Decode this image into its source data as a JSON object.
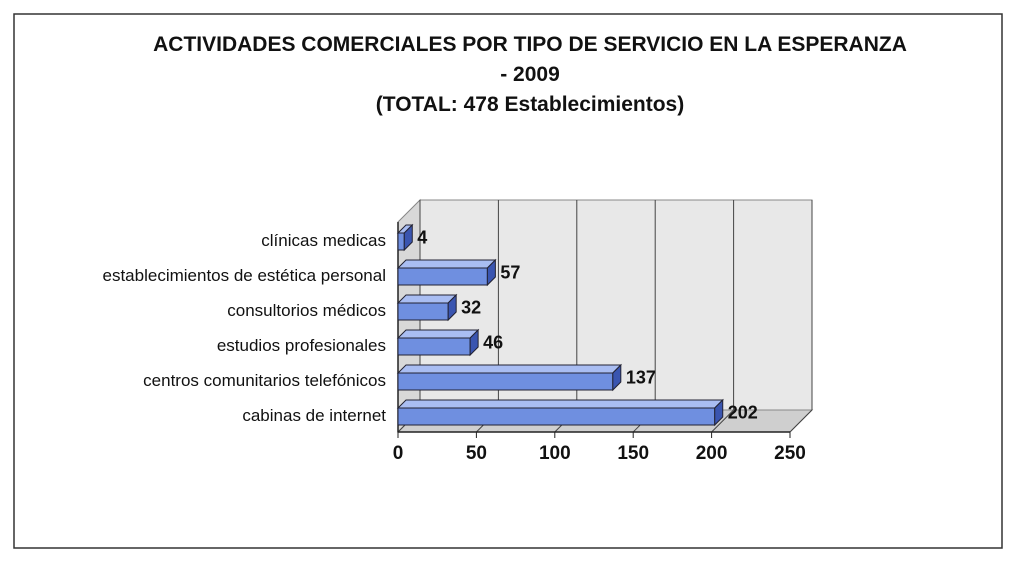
{
  "chart_data": {
    "type": "bar3d_horizontal",
    "title": "ACTIVIDADES COMERCIALES POR TIPO DE SERVICIO EN LA ESPERANZA - 2009",
    "subtitle": "(TOTAL: 478 Establecimientos)",
    "categories": [
      "clínicas medicas",
      "establecimientos de estética personal",
      "consultorios médicos",
      "estudios profesionales",
      "centros comunitarios telefónicos",
      "cabinas de internet"
    ],
    "values": [
      4,
      57,
      32,
      46,
      137,
      202
    ],
    "color": "#6f8fe0",
    "xlim": [
      0,
      250
    ],
    "xticks": [
      0,
      50,
      100,
      150,
      200,
      250
    ],
    "grid": true
  }
}
